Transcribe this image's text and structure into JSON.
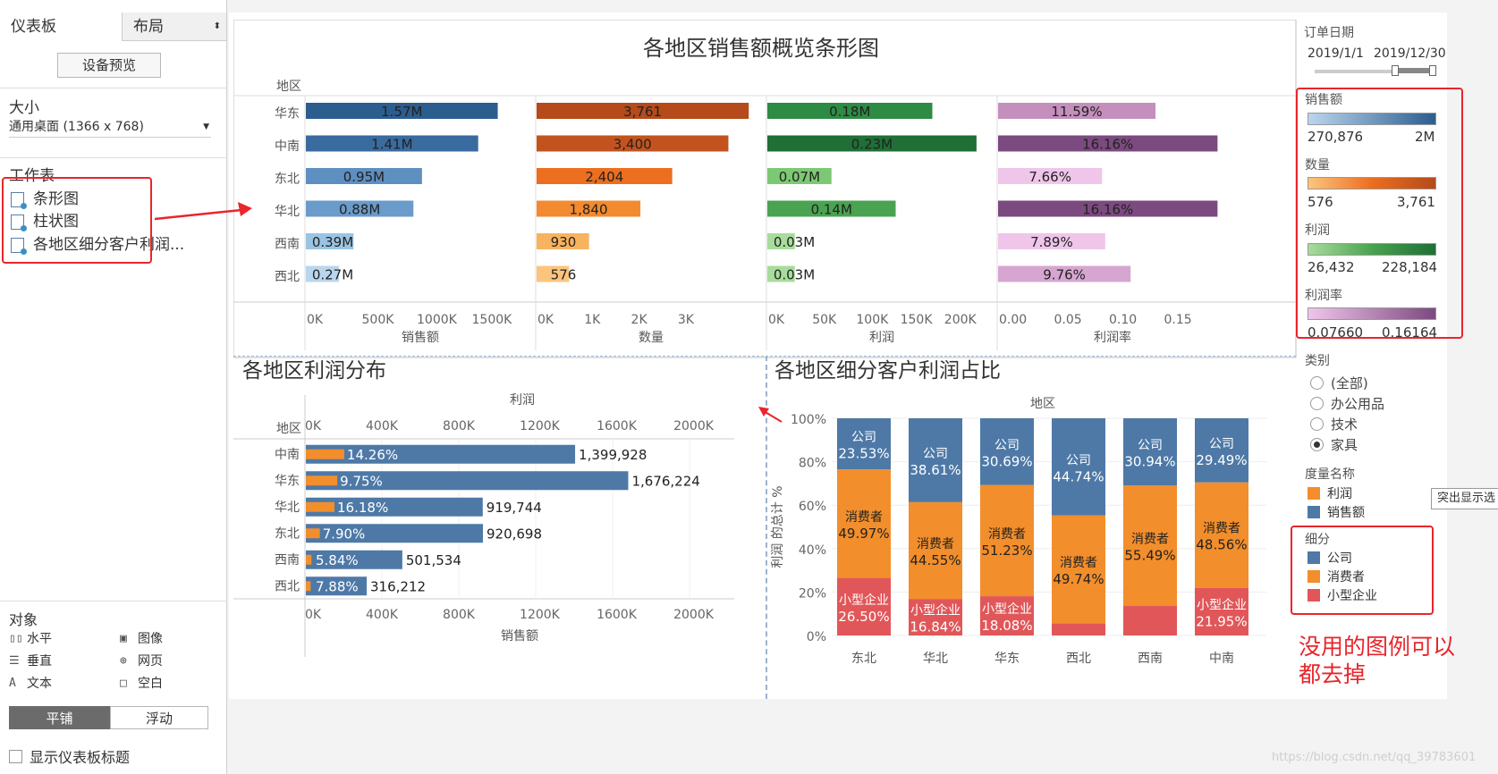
{
  "left_panel": {
    "tab_dashboard": "仪表板",
    "tab_layout": "布局",
    "device_preview": "设备预览",
    "size_label": "大小",
    "size_value": "通用桌面 (1366 x 768)",
    "worksheets_label": "工作表",
    "sheets": [
      "条形图",
      "柱状图",
      "各地区细分客户利润..."
    ],
    "objects_label": "对象",
    "objects": [
      {
        "icon": "horizontal-icon",
        "glyph": "▯▯",
        "label": "水平"
      },
      {
        "icon": "image-icon",
        "glyph": "▣",
        "label": "图像"
      },
      {
        "icon": "vertical-icon",
        "glyph": "☰",
        "label": "垂直"
      },
      {
        "icon": "web-icon",
        "glyph": "⊕",
        "label": "网页"
      },
      {
        "icon": "text-icon",
        "glyph": "A",
        "label": "文本"
      },
      {
        "icon": "blank-icon",
        "glyph": "□",
        "label": "空白"
      }
    ],
    "tile": "平铺",
    "float": "浮动",
    "show_title": "显示仪表板标题"
  },
  "chart_data": [
    {
      "type": "bar",
      "title": "各地区销售额概览条形图",
      "row_header": "地区",
      "categories": [
        "华东",
        "中南",
        "东北",
        "华北",
        "西南",
        "西北"
      ],
      "series": [
        {
          "name": "销售额",
          "values": [
            1570000,
            1410000,
            950000,
            880000,
            390000,
            270000
          ],
          "labels": [
            "1.57M",
            "1.41M",
            "0.95M",
            "0.88M",
            "0.39M",
            "0.27M"
          ],
          "xlim": [
            0,
            1800000
          ],
          "ticks": [
            "0K",
            "500K",
            "1000K",
            "1500K"
          ],
          "colors": [
            "#2c5d8f",
            "#3a6b9f",
            "#5d8fc0",
            "#6a9bca",
            "#9bc4e2",
            "#b9d6ee"
          ]
        },
        {
          "name": "数量",
          "values": [
            3761,
            3400,
            2404,
            1840,
            930,
            576
          ],
          "labels": [
            "3,761",
            "3,400",
            "2,404",
            "1,840",
            "930",
            "576"
          ],
          "xlim": [
            0,
            3900
          ],
          "ticks": [
            "0K",
            "1K",
            "2K",
            "3K"
          ],
          "colors": [
            "#b54a1a",
            "#c2531f",
            "#ec6e1f",
            "#f28b30",
            "#f8b35f",
            "#fcc57d"
          ]
        },
        {
          "name": "利润",
          "values": [
            180000,
            228184,
            70000,
            140000,
            30000,
            30000
          ],
          "labels": [
            "0.18M",
            "0.23M",
            "0.07M",
            "0.14M",
            "0.03M",
            "0.03M"
          ],
          "xlim": [
            0,
            240000
          ],
          "ticks": [
            "0K",
            "50K",
            "100K",
            "150K",
            "200K"
          ],
          "colors": [
            "#2e8b43",
            "#1f6f36",
            "#7dc874",
            "#4aa350",
            "#a8dc9c",
            "#a8dc9c"
          ]
        },
        {
          "name": "利润率",
          "values": [
            0.1159,
            0.1616,
            0.0766,
            0.1616,
            0.0789,
            0.0976
          ],
          "labels": [
            "11.59%",
            "16.16%",
            "7.66%",
            "16.16%",
            "7.89%",
            "9.76%"
          ],
          "xlim": [
            0,
            0.162
          ],
          "ticks": [
            "0.00",
            "0.05",
            "0.10",
            "0.15"
          ],
          "colors": [
            "#c48fbd",
            "#7b4a7f",
            "#efc6ea",
            "#7b4a7f",
            "#efc6ea",
            "#d6a6d1"
          ]
        }
      ]
    },
    {
      "type": "bar",
      "title": "各地区利润分布",
      "row_header": "地区",
      "top_axis_label": "利润",
      "xlabel": "销售额",
      "categories": [
        "中南",
        "华东",
        "华北",
        "东北",
        "西南",
        "西北"
      ],
      "ticks": [
        "0K",
        "400K",
        "800K",
        "1200K",
        "1600K",
        "2000K"
      ],
      "xlim": [
        0,
        2000000
      ],
      "series": [
        {
          "name": "销售额",
          "values": [
            1399928,
            1676224,
            919744,
            920698,
            501534,
            316212
          ],
          "labels": [
            "1,399,928",
            "1,676,224",
            "919,744",
            "920,698",
            "501,534",
            "316,212"
          ],
          "color": "#4e79a7"
        },
        {
          "name": "利润",
          "values": [
            199650,
            163432,
            148814,
            72735,
            29290,
            24918
          ],
          "labels": [
            "14.26%",
            "9.75%",
            "16.18%",
            "7.90%",
            "5.84%",
            "7.88%"
          ],
          "color": "#f28e2b"
        }
      ]
    },
    {
      "type": "bar",
      "stacked": true,
      "title": "各地区细分客户利润占比",
      "xlabel": "地区",
      "ylabel": "利润 的总计 %",
      "yticks": [
        "100%",
        "80%",
        "60%",
        "40%",
        "20%",
        "0%"
      ],
      "categories": [
        "东北",
        "华北",
        "华东",
        "西北",
        "西南",
        "中南"
      ],
      "series": [
        {
          "name": "公司",
          "color": "#4e79a7",
          "values": [
            23.53,
            38.61,
            30.69,
            44.74,
            30.94,
            29.49
          ],
          "labels": [
            "23.53%",
            "38.61%",
            "30.69%",
            "44.74%",
            "30.94%",
            "29.49%"
          ]
        },
        {
          "name": "消费者",
          "color": "#f28e2b",
          "values": [
            49.97,
            44.55,
            51.23,
            49.74,
            55.49,
            48.56
          ],
          "labels": [
            "49.97%",
            "44.55%",
            "51.23%",
            "49.74%",
            "55.49%",
            "48.56%"
          ]
        },
        {
          "name": "小型企业",
          "color": "#e15759",
          "values": [
            26.5,
            16.84,
            18.08,
            5.52,
            13.57,
            21.95
          ],
          "labels": [
            "26.50%",
            "16.84%",
            "18.08%",
            "",
            "",
            "21.95%"
          ]
        }
      ]
    }
  ],
  "legends": {
    "date_title": "订单日期",
    "date_from": "2019/1/1",
    "date_to": "2019/12/30",
    "sales": {
      "title": "销售额",
      "min": "270,876",
      "max": "2M"
    },
    "qty": {
      "title": "数量",
      "min": "576",
      "max": "3,761"
    },
    "profit": {
      "title": "利润",
      "min": "26,432",
      "max": "228,184"
    },
    "rate": {
      "title": "利润率",
      "min": "0.07660",
      "max": "0.16164"
    },
    "category_title": "类别",
    "category_options": [
      "(全部)",
      "办公用品",
      "技术",
      "家具"
    ],
    "measure_title": "度量名称",
    "measures": [
      {
        "name": "利润",
        "color": "#f28e2b"
      },
      {
        "name": "销售额",
        "color": "#4e79a7"
      }
    ],
    "segment_title": "细分",
    "segments": [
      {
        "name": "公司",
        "color": "#4e79a7"
      },
      {
        "name": "消费者",
        "color": "#f28e2b"
      },
      {
        "name": "小型企业",
        "color": "#e15759"
      }
    ],
    "tooltip": "突出显示选"
  },
  "annotation": {
    "text_line1": "没用的图例可以",
    "text_line2": "都去掉",
    "color": "#e8262b"
  },
  "watermark": "https://blog.csdn.net/qq_39783601"
}
